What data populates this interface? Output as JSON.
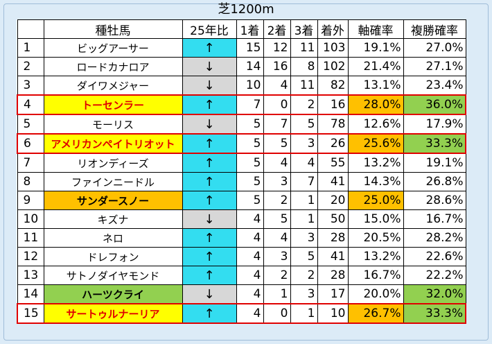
{
  "title": "芝1200m",
  "colors": {
    "up": "#33ddf0",
    "down": "#d7d7d7",
    "yellow": "#ffff00",
    "orange": "#ffc000",
    "green": "#92d050",
    "highlight_red": "#e00000"
  },
  "headers": [
    "",
    "種牡馬",
    "25年比",
    "1着",
    "2着",
    "3着",
    "着外",
    "軸確率",
    "複勝確率"
  ],
  "rows": [
    {
      "rank": "1",
      "name": "ビッグアーサー",
      "trend": "↑",
      "trend_dir": "up",
      "w1": "15",
      "w2": "12",
      "w3": "11",
      "out": "103",
      "axis": "19.1%",
      "place": "27.0%"
    },
    {
      "rank": "2",
      "name": "ロードカナロア",
      "trend": "↓",
      "trend_dir": "down",
      "w1": "14",
      "w2": "16",
      "w3": "8",
      "out": "102",
      "axis": "21.4%",
      "place": "27.1%"
    },
    {
      "rank": "3",
      "name": "ダイワメジャー",
      "trend": "↓",
      "trend_dir": "down",
      "w1": "10",
      "w2": "4",
      "w3": "11",
      "out": "82",
      "axis": "13.1%",
      "place": "23.4%"
    },
    {
      "rank": "4",
      "name": "トーセンラー",
      "trend": "↑",
      "trend_dir": "up",
      "w1": "7",
      "w2": "0",
      "w3": "2",
      "out": "16",
      "axis": "28.0%",
      "place": "36.0%",
      "name_color": "yellow",
      "axis_color": "orange",
      "place_color": "green",
      "boxed": true
    },
    {
      "rank": "5",
      "name": "モーリス",
      "trend": "↓",
      "trend_dir": "down",
      "w1": "5",
      "w2": "7",
      "w3": "5",
      "out": "78",
      "axis": "12.6%",
      "place": "17.9%"
    },
    {
      "rank": "6",
      "name": "アメリカンペイトリオット",
      "trend": "↑",
      "trend_dir": "up",
      "w1": "5",
      "w2": "5",
      "w3": "3",
      "out": "26",
      "axis": "25.6%",
      "place": "33.3%",
      "name_color": "yellow",
      "axis_color": "orange",
      "place_color": "green",
      "boxed": true
    },
    {
      "rank": "7",
      "name": "リオンディーズ",
      "trend": "↑",
      "trend_dir": "up",
      "w1": "5",
      "w2": "4",
      "w3": "4",
      "out": "55",
      "axis": "13.2%",
      "place": "19.1%"
    },
    {
      "rank": "8",
      "name": "ファインニードル",
      "trend": "↑",
      "trend_dir": "up",
      "w1": "5",
      "w2": "3",
      "w3": "7",
      "out": "41",
      "axis": "14.3%",
      "place": "26.8%"
    },
    {
      "rank": "9",
      "name": "サンダースノー",
      "trend": "↑",
      "trend_dir": "up",
      "w1": "5",
      "w2": "2",
      "w3": "1",
      "out": "20",
      "axis": "25.0%",
      "place": "28.6%",
      "name_color": "orange",
      "axis_color": "orange",
      "bold_black": true
    },
    {
      "rank": "10",
      "name": "キズナ",
      "trend": "↓",
      "trend_dir": "down",
      "w1": "4",
      "w2": "5",
      "w3": "1",
      "out": "50",
      "axis": "15.0%",
      "place": "16.7%"
    },
    {
      "rank": "11",
      "name": "ネロ",
      "trend": "↑",
      "trend_dir": "up",
      "w1": "4",
      "w2": "4",
      "w3": "3",
      "out": "28",
      "axis": "20.5%",
      "place": "28.2%"
    },
    {
      "rank": "12",
      "name": "ドレフォン",
      "trend": "↑",
      "trend_dir": "up",
      "w1": "4",
      "w2": "3",
      "w3": "5",
      "out": "41",
      "axis": "13.2%",
      "place": "22.6%"
    },
    {
      "rank": "13",
      "name": "サトノダイヤモンド",
      "trend": "↑",
      "trend_dir": "up",
      "w1": "4",
      "w2": "2",
      "w3": "2",
      "out": "28",
      "axis": "16.7%",
      "place": "22.2%"
    },
    {
      "rank": "14",
      "name": "ハーツクライ",
      "trend": "↓",
      "trend_dir": "down",
      "w1": "4",
      "w2": "1",
      "w3": "3",
      "out": "17",
      "axis": "20.0%",
      "place": "32.0%",
      "name_color": "green",
      "place_color": "green",
      "bold_black": true
    },
    {
      "rank": "15",
      "name": "サートゥルナーリア",
      "trend": "↑",
      "trend_dir": "up",
      "w1": "4",
      "w2": "0",
      "w3": "1",
      "out": "10",
      "axis": "26.7%",
      "place": "33.3%",
      "name_color": "yellow",
      "axis_color": "orange",
      "place_color": "green",
      "boxed": true
    }
  ]
}
